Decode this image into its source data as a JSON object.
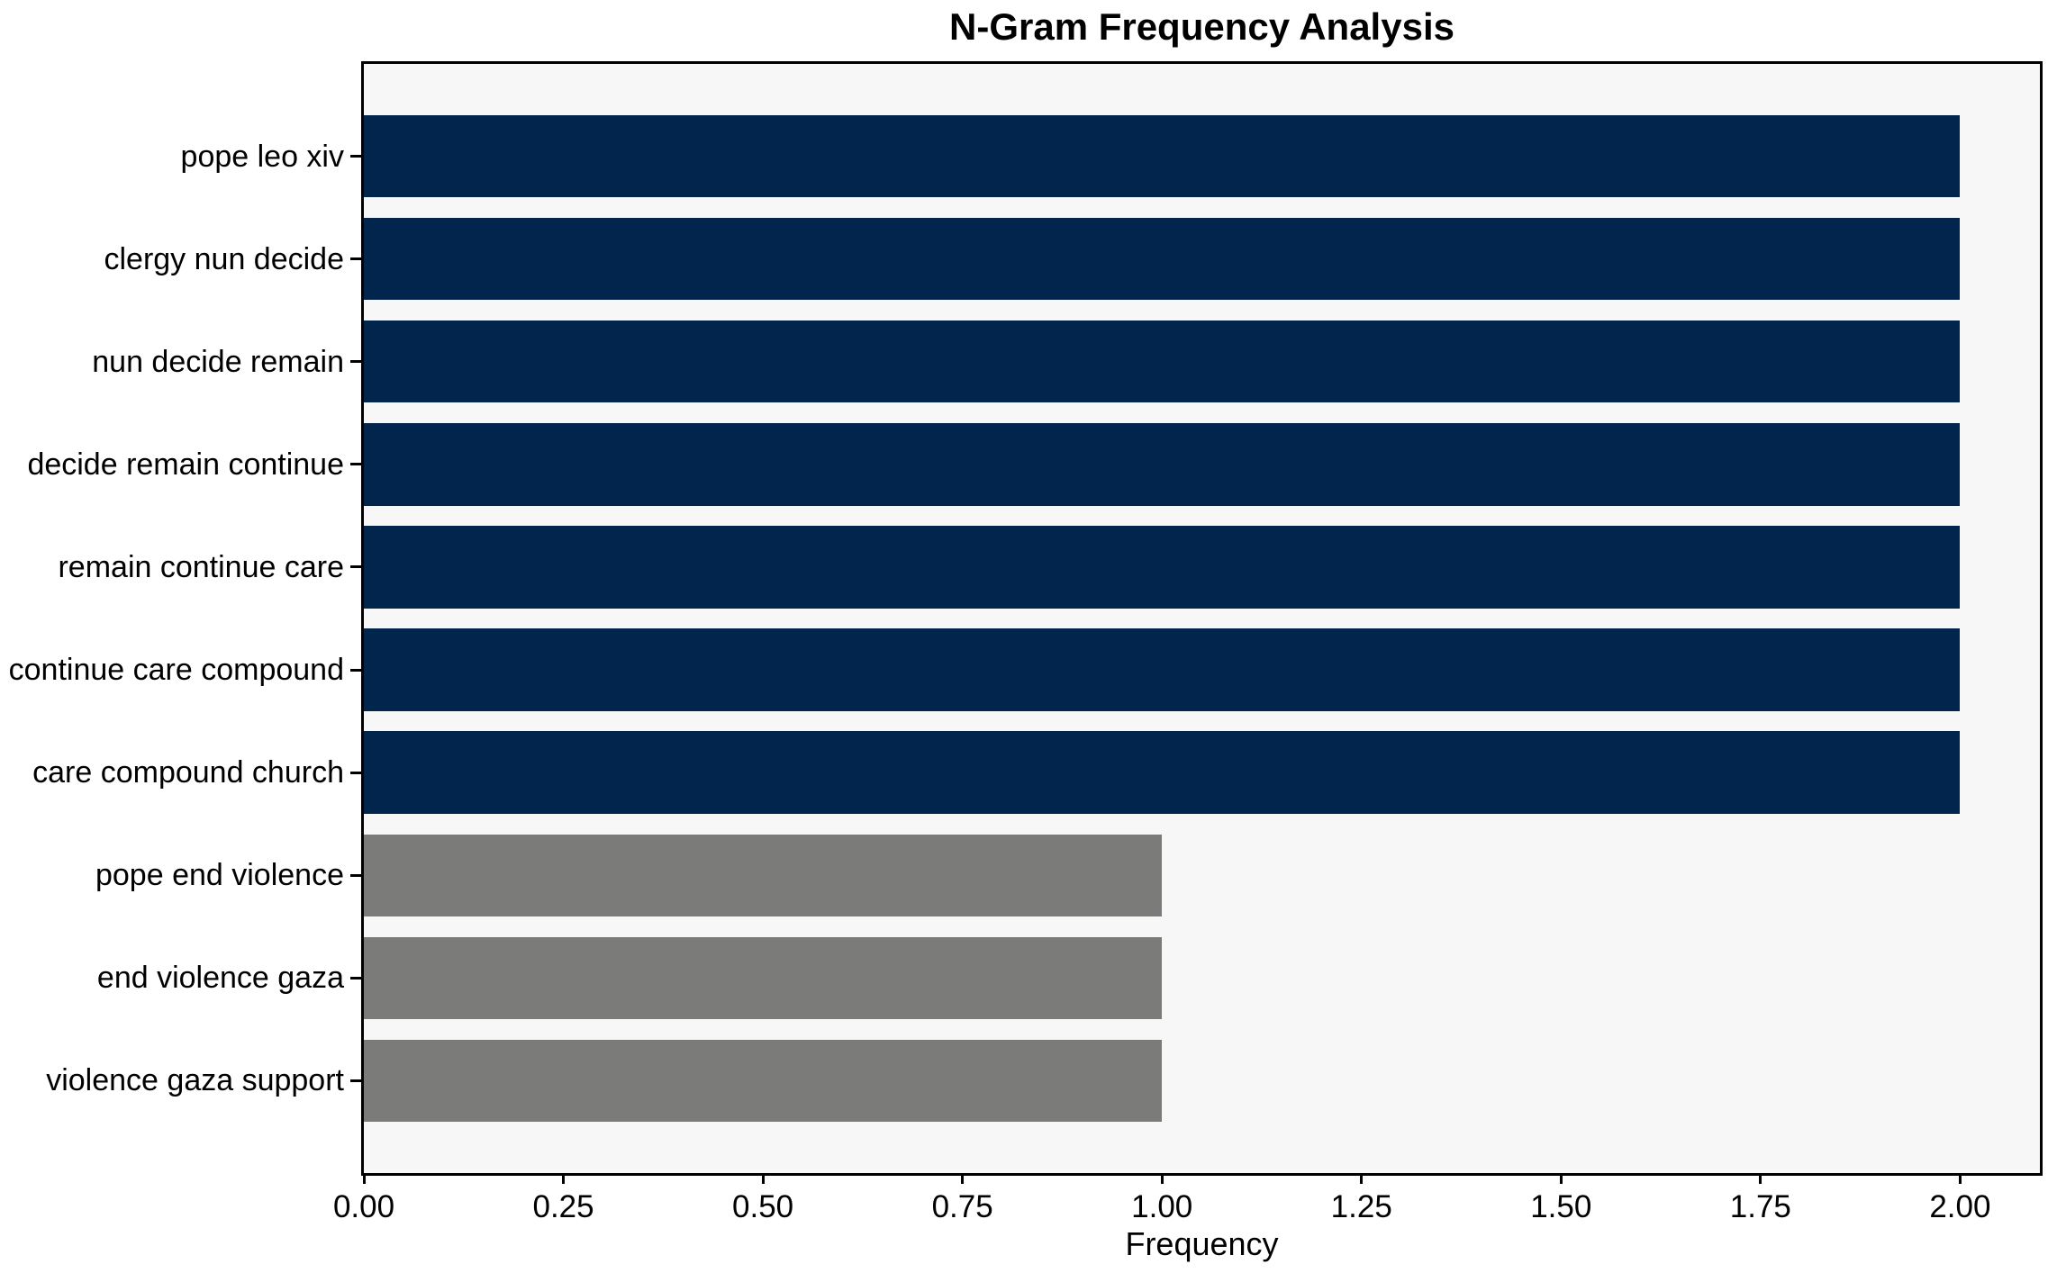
{
  "figure": {
    "title": "N-Gram Frequency Analysis"
  },
  "chart_data": {
    "type": "bar",
    "orientation": "horizontal",
    "title": "N-Gram Frequency Analysis",
    "categories": [
      "pope leo xiv",
      "clergy nun decide",
      "nun decide remain",
      "decide remain continue",
      "remain continue care",
      "continue care compound",
      "care compound church",
      "pope end violence",
      "end violence gaza",
      "violence gaza support"
    ],
    "values": [
      2,
      2,
      2,
      2,
      2,
      2,
      2,
      1,
      1,
      1
    ],
    "bar_colors": [
      "#02254e",
      "#02254e",
      "#02254e",
      "#02254e",
      "#02254e",
      "#02254e",
      "#02254e",
      "#7b7b79",
      "#7b7b79",
      "#7b7b79"
    ],
    "xlabel": "Frequency",
    "ylabel": "",
    "xlim": [
      0,
      2.1
    ],
    "xticks": [
      0,
      0.25,
      0.5,
      0.75,
      1.0,
      1.25,
      1.5,
      1.75,
      2.0
    ],
    "xtick_labels": [
      "0.00",
      "0.25",
      "0.50",
      "0.75",
      "1.00",
      "1.25",
      "1.50",
      "1.75",
      "2.00"
    ],
    "grid": false,
    "legend": false,
    "colors": {
      "navy": "#02254e",
      "gray": "#7b7b79",
      "plot_background": "#f7f7f7",
      "figure_background": "#ffffff",
      "spine": "#000000",
      "text": "#000000"
    }
  }
}
